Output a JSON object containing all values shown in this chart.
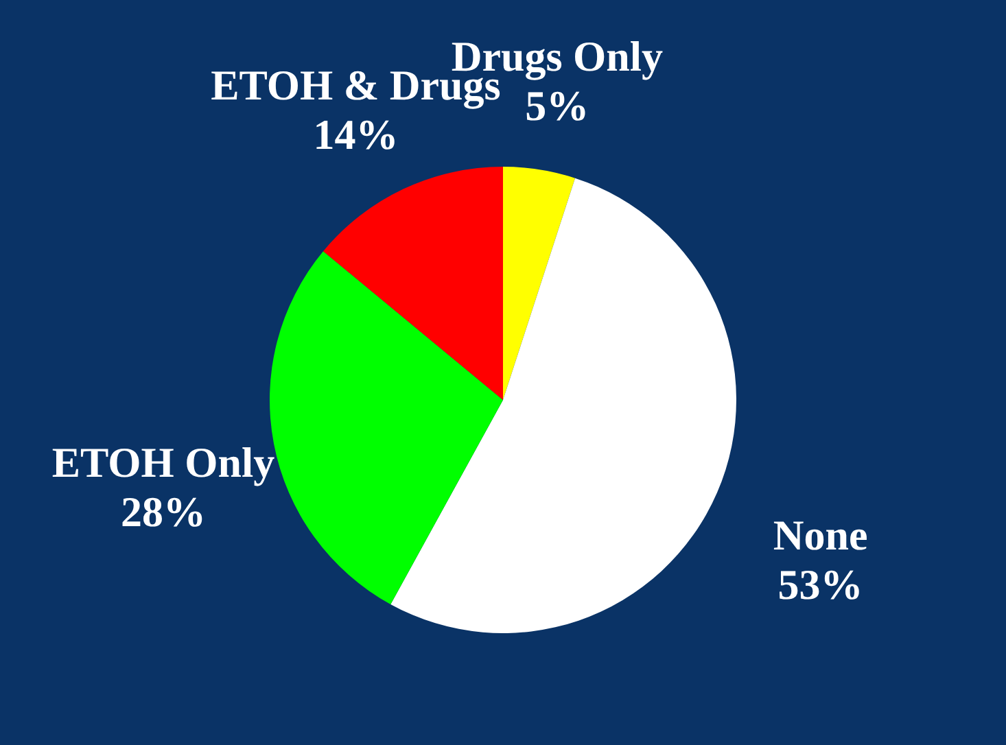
{
  "chart_data": {
    "type": "pie",
    "categories": [
      "Drugs Only",
      "None",
      "ETOH Only",
      "ETOH & Drugs"
    ],
    "values": [
      5,
      53,
      28,
      14
    ],
    "value_labels": [
      "5%",
      "53%",
      "28%",
      "14%"
    ],
    "colors": [
      "#ffff00",
      "#ffffff",
      "#00ff00",
      "#ff0000"
    ],
    "legend": false
  }
}
